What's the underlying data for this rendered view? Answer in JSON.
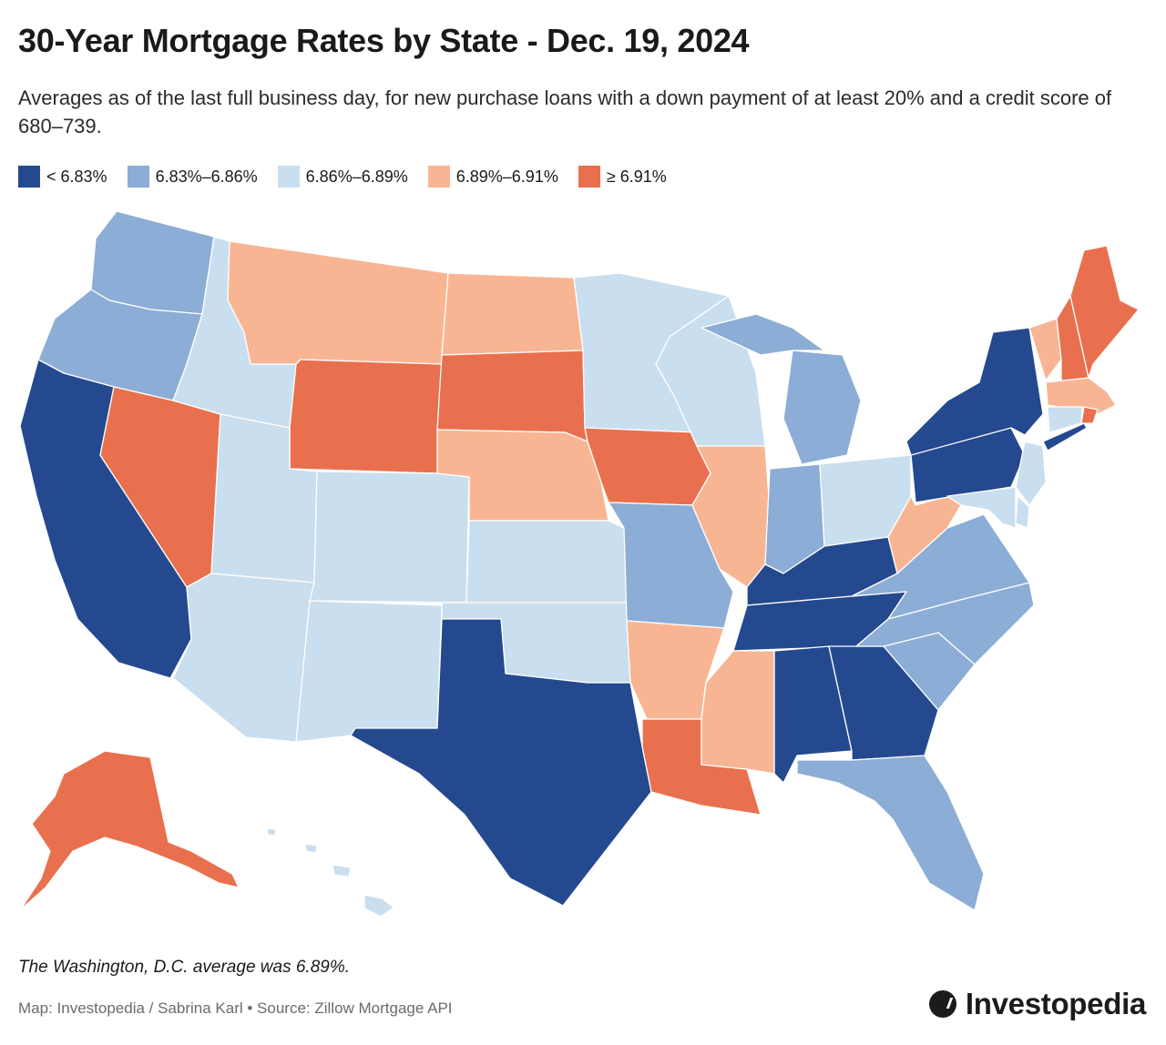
{
  "header": {
    "title": "30-Year Mortgage Rates by State - Dec. 19, 2024",
    "subtitle": "Averages as of the last full business day, for new purchase loans with a down payment of at least 20% and a credit score of 680–739."
  },
  "legend": [
    {
      "label": "< 6.83%",
      "color": "#24498e"
    },
    {
      "label": "6.83%–6.86%",
      "color": "#8cadd5"
    },
    {
      "label": "6.86%–6.89%",
      "color": "#c9deee"
    },
    {
      "label": "6.89%–6.91%",
      "color": "#f8b594"
    },
    {
      "label": "≥ 6.91%",
      "color": "#e9704e"
    }
  ],
  "map": {
    "tiers": {
      "WA": 1,
      "OR": 1,
      "CA": 0,
      "NV": 4,
      "ID": 2,
      "MT": 3,
      "WY": 4,
      "UT": 2,
      "AZ": 2,
      "CO": 2,
      "NM": 2,
      "ND": 3,
      "SD": 4,
      "NE": 3,
      "KS": 2,
      "OK": 2,
      "TX": 0,
      "MN": 2,
      "IA": 4,
      "MO": 1,
      "AR": 3,
      "LA": 4,
      "WI": 2,
      "IL": 3,
      "MI": 1,
      "IN": 1,
      "OH": 2,
      "KY": 0,
      "TN": 0,
      "MS": 3,
      "AL": 0,
      "GA": 0,
      "FL": 1,
      "SC": 1,
      "NC": 1,
      "VA": 1,
      "WV": 3,
      "PA": 0,
      "NY": 0,
      "ME": 4,
      "NH": 4,
      "VT": 3,
      "MA": 3,
      "CT": 2,
      "RI": 4,
      "NJ": 2,
      "DE": 2,
      "MD": 2,
      "AK": 4,
      "HI": 2
    }
  },
  "footer": {
    "note": "The Washington, D.C. average was 6.89%.",
    "credit": "Map: Investopedia / Sabrina Karl • Source: Zillow Mortgage API",
    "brand": "Investopedia"
  }
}
